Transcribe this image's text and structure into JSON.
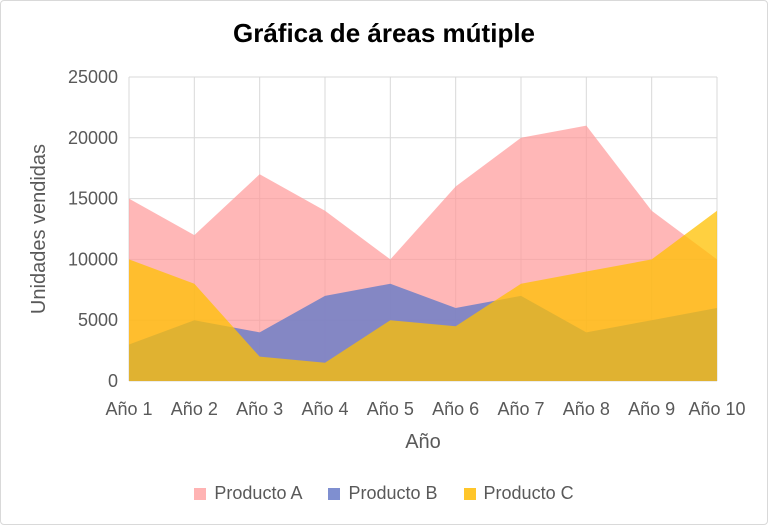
{
  "chart_data": {
    "type": "area",
    "title": "Gráfica de áreas mútiple",
    "xlabel": "Año",
    "ylabel": "Unidades vendidas",
    "categories": [
      "Año 1",
      "Año 2",
      "Año 3",
      "Año 4",
      "Año 5",
      "Año 6",
      "Año 7",
      "Año 8",
      "Año 9",
      "Año 10"
    ],
    "ylim": [
      0,
      25000
    ],
    "yticks": [
      "0",
      "5000",
      "10000",
      "15000",
      "20000",
      "25000"
    ],
    "grid": true,
    "legend_position": "bottom",
    "series": [
      {
        "name": "Producto A",
        "color": "#ff9999",
        "values": [
          15000,
          12000,
          17000,
          14000,
          10000,
          16000,
          20000,
          21000,
          14000,
          10000
        ]
      },
      {
        "name": "Producto B",
        "color": "#6f7fc7",
        "values": [
          3000,
          5000,
          4000,
          7000,
          8000,
          6000,
          7000,
          4000,
          5000,
          6000
        ]
      },
      {
        "name": "Producto C",
        "color": "#ffc000",
        "values": [
          10000,
          8000,
          2000,
          1500,
          5000,
          4500,
          8000,
          9000,
          10000,
          14000
        ]
      }
    ]
  }
}
